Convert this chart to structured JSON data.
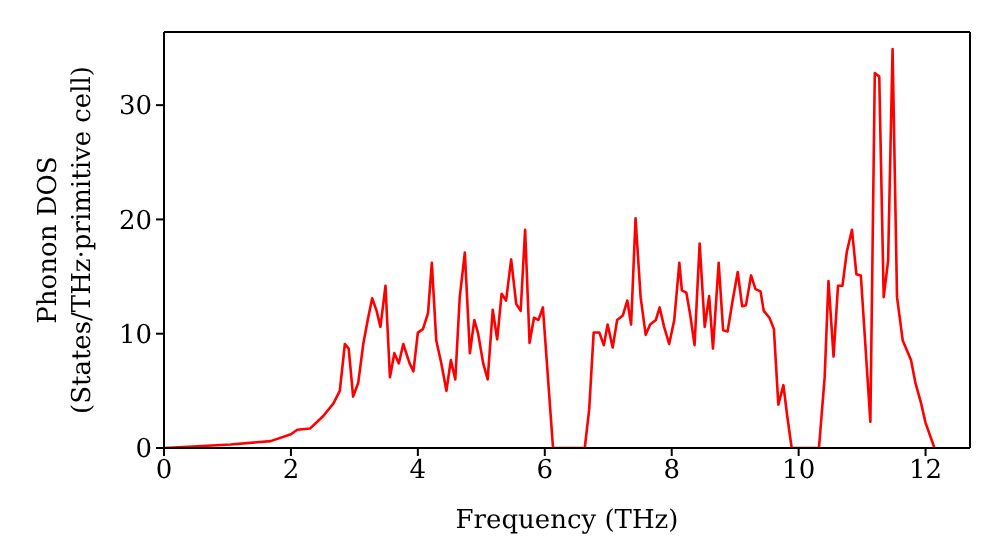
{
  "chart_data": {
    "type": "line",
    "xlabel": "Frequency (THz)",
    "ylabel": "Phonon DOS\n(States/THz·primitive cell)",
    "x": [
      0,
      1.05,
      1.68,
      2.0,
      2.1,
      2.3,
      2.51,
      2.67,
      2.77,
      2.85,
      2.91,
      2.98,
      3.06,
      3.14,
      3.21,
      3.28,
      3.35,
      3.41,
      3.49,
      3.56,
      3.63,
      3.7,
      3.77,
      3.87,
      3.93,
      4.0,
      4.08,
      4.16,
      4.22,
      4.29,
      4.37,
      4.45,
      4.52,
      4.59,
      4.66,
      4.74,
      4.82,
      4.89,
      4.95,
      5.03,
      5.1,
      5.18,
      5.25,
      5.32,
      5.39,
      5.47,
      5.55,
      5.62,
      5.69,
      5.76,
      5.83,
      5.9,
      5.97,
      6.13,
      6.63,
      6.7,
      6.77,
      6.86,
      6.93,
      6.99,
      7.07,
      7.14,
      7.23,
      7.3,
      7.36,
      7.43,
      7.51,
      7.59,
      7.66,
      7.75,
      7.81,
      7.88,
      7.96,
      8.04,
      8.12,
      8.16,
      8.23,
      8.29,
      8.36,
      8.44,
      8.52,
      8.59,
      8.65,
      8.74,
      8.81,
      8.88,
      8.96,
      9.04,
      9.11,
      9.17,
      9.25,
      9.32,
      9.4,
      9.45,
      9.54,
      9.61,
      9.68,
      9.76,
      9.82,
      9.89,
      10.32,
      10.41,
      10.47,
      10.55,
      10.62,
      10.69,
      10.76,
      10.84,
      10.91,
      10.98,
      11.13,
      11.2,
      11.27,
      11.34,
      11.41,
      11.48,
      11.55,
      11.64,
      11.77,
      11.84,
      11.93,
      12.0,
      12.14
    ],
    "series": [
      {
        "color": "#ff0000",
        "values": [
          0,
          0.3,
          0.6,
          1.2,
          1.6,
          1.7,
          2.8,
          3.9,
          5.0,
          9.1,
          8.7,
          4.5,
          5.7,
          9.1,
          11.2,
          13.1,
          12.0,
          10.6,
          14.2,
          6.2,
          8.3,
          7.4,
          9.1,
          7.4,
          6.7,
          10.1,
          10.4,
          11.8,
          16.2,
          9.4,
          7.4,
          5.0,
          7.7,
          6.0,
          13.2,
          17.1,
          8.3,
          11.2,
          10.0,
          7.4,
          6.0,
          12.1,
          9.5,
          13.5,
          12.9,
          16.5,
          12.6,
          12.0,
          19.1,
          9.2,
          11.4,
          11.2,
          12.3,
          0,
          0,
          3.4,
          10.1,
          10.1,
          9.0,
          10.8,
          8.8,
          11.2,
          11.6,
          12.9,
          10.8,
          20.1,
          13.2,
          9.9,
          10.8,
          11.2,
          12.3,
          10.6,
          9.1,
          11.2,
          16.2,
          13.8,
          13.6,
          11.7,
          9.0,
          17.9,
          10.6,
          13.3,
          8.7,
          16.2,
          10.3,
          10.2,
          12.9,
          15.4,
          12.4,
          12.5,
          15.1,
          13.9,
          13.7,
          12.0,
          11.4,
          10.4,
          3.8,
          5.5,
          2.8,
          0,
          0,
          6.2,
          14.6,
          8.0,
          14.2,
          14.2,
          17.2,
          19.1,
          15.2,
          15.1,
          2.3,
          32.8,
          32.5,
          13.2,
          16.4,
          34.9,
          13.2,
          9.4,
          7.7,
          5.7,
          3.9,
          2.2,
          0
        ]
      }
    ],
    "xlim": [
      0,
      12.7
    ],
    "ylim": [
      0,
      36.4
    ],
    "xticks": [
      0,
      2,
      4,
      6,
      8,
      10,
      12
    ],
    "yticks": [
      0,
      10,
      20,
      30
    ],
    "grid": false,
    "legend": false,
    "marker": "none",
    "line_style": "solid"
  }
}
